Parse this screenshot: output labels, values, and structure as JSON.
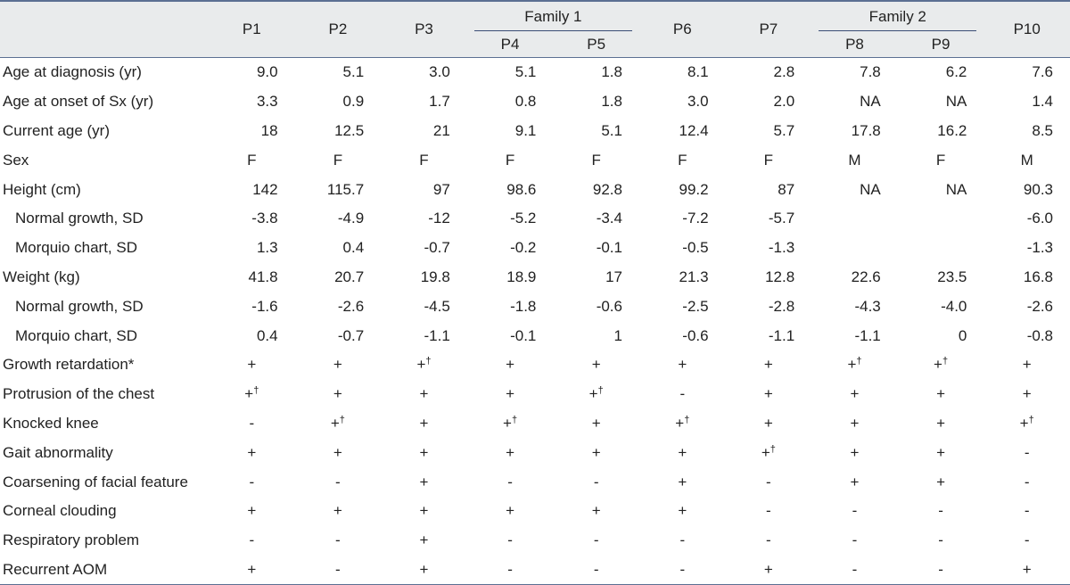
{
  "header": {
    "patients": [
      "P1",
      "P2",
      "P3",
      "P4",
      "P5",
      "P6",
      "P7",
      "P8",
      "P9",
      "P10"
    ],
    "family1": "Family 1",
    "family2": "Family 2"
  },
  "rows": [
    {
      "label": "Age at diagnosis (yr)",
      "indent": false,
      "align": "num",
      "cells": [
        "9.0",
        "5.1",
        "3.0",
        "5.1",
        "1.8",
        "8.1",
        "2.8",
        "7.8",
        "6.2",
        "7.6"
      ],
      "sups": [
        "",
        "",
        "",
        "",
        "",
        "",
        "",
        "",
        "",
        ""
      ]
    },
    {
      "label": "Age at onset of Sx (yr)",
      "indent": false,
      "align": "num",
      "cells": [
        "3.3",
        "0.9",
        "1.7",
        "0.8",
        "1.8",
        "3.0",
        "2.0",
        "NA",
        "NA",
        "1.4"
      ],
      "sups": [
        "",
        "",
        "",
        "",
        "",
        "",
        "",
        "",
        "",
        ""
      ]
    },
    {
      "label": "Current age (yr)",
      "indent": false,
      "align": "num",
      "cells": [
        "18",
        "12.5",
        "21",
        "9.1",
        "5.1",
        "12.4",
        "5.7",
        "17.8",
        "16.2",
        "8.5"
      ],
      "sups": [
        "",
        "",
        "",
        "",
        "",
        "",
        "",
        "",
        "",
        ""
      ]
    },
    {
      "label": "Sex",
      "indent": false,
      "align": "sym",
      "cells": [
        "F",
        "F",
        "F",
        "F",
        "F",
        "F",
        "F",
        "M",
        "F",
        "M"
      ],
      "sups": [
        "",
        "",
        "",
        "",
        "",
        "",
        "",
        "",
        "",
        ""
      ]
    },
    {
      "label": "Height (cm)",
      "indent": false,
      "align": "num",
      "cells": [
        "142",
        "115.7",
        "97",
        "98.6",
        "92.8",
        "99.2",
        "87",
        "NA",
        "NA",
        "90.3"
      ],
      "sups": [
        "",
        "",
        "",
        "",
        "",
        "",
        "",
        "",
        "",
        ""
      ]
    },
    {
      "label": "Normal growth, SD",
      "indent": true,
      "align": "num",
      "cells": [
        "-3.8",
        "-4.9",
        "-12",
        "-5.2",
        "-3.4",
        "-7.2",
        "-5.7",
        "",
        "",
        "-6.0"
      ],
      "sups": [
        "",
        "",
        "",
        "",
        "",
        "",
        "",
        "",
        "",
        ""
      ]
    },
    {
      "label": "Morquio chart, SD",
      "indent": true,
      "align": "num",
      "cells": [
        "1.3",
        "0.4",
        "-0.7",
        "-0.2",
        "-0.1",
        "-0.5",
        "-1.3",
        "",
        "",
        "-1.3"
      ],
      "sups": [
        "",
        "",
        "",
        "",
        "",
        "",
        "",
        "",
        "",
        ""
      ]
    },
    {
      "label": "Weight (kg)",
      "indent": false,
      "align": "num",
      "cells": [
        "41.8",
        "20.7",
        "19.8",
        "18.9",
        "17",
        "21.3",
        "12.8",
        "22.6",
        "23.5",
        "16.8"
      ],
      "sups": [
        "",
        "",
        "",
        "",
        "",
        "",
        "",
        "",
        "",
        ""
      ]
    },
    {
      "label": "Normal growth, SD",
      "indent": true,
      "align": "num",
      "cells": [
        "-1.6",
        "-2.6",
        "-4.5",
        "-1.8",
        "-0.6",
        "-2.5",
        "-2.8",
        "-4.3",
        "-4.0",
        "-2.6"
      ],
      "sups": [
        "",
        "",
        "",
        "",
        "",
        "",
        "",
        "",
        "",
        ""
      ]
    },
    {
      "label": "Morquio chart, SD",
      "indent": true,
      "align": "num",
      "cells": [
        "0.4",
        "-0.7",
        "-1.1",
        "-0.1",
        "1",
        "-0.6",
        "-1.1",
        "-1.1",
        "0",
        "-0.8"
      ],
      "sups": [
        "",
        "",
        "",
        "",
        "",
        "",
        "",
        "",
        "",
        ""
      ]
    },
    {
      "label": "Growth retardation*",
      "indent": false,
      "align": "sym",
      "cells": [
        "+",
        "+",
        "+",
        "+",
        "+",
        "+",
        "+",
        "+",
        "+",
        "+"
      ],
      "sups": [
        "",
        "",
        "†",
        "",
        "",
        "",
        "",
        "†",
        "†",
        ""
      ]
    },
    {
      "label": "Protrusion of the chest",
      "indent": false,
      "align": "sym",
      "cells": [
        "+",
        "+",
        "+",
        "+",
        "+",
        "-",
        "+",
        "+",
        "+",
        "+"
      ],
      "sups": [
        "†",
        "",
        "",
        "",
        "†",
        "",
        "",
        "",
        "",
        ""
      ]
    },
    {
      "label": "Knocked knee",
      "indent": false,
      "align": "sym",
      "cells": [
        "-",
        "+",
        "+",
        "+",
        "+",
        "+",
        "+",
        "+",
        "+",
        "+"
      ],
      "sups": [
        "",
        "†",
        "",
        "†",
        "",
        "†",
        "",
        "",
        "",
        "†"
      ]
    },
    {
      "label": "Gait abnormality",
      "indent": false,
      "align": "sym",
      "cells": [
        "+",
        "+",
        "+",
        "+",
        "+",
        "+",
        "+",
        "+",
        "+",
        "-"
      ],
      "sups": [
        "",
        "",
        "",
        "",
        "",
        "",
        "†",
        "",
        "",
        ""
      ]
    },
    {
      "label": "Coarsening of facial feature",
      "indent": false,
      "align": "sym",
      "cells": [
        "-",
        "-",
        "+",
        "-",
        "-",
        "+",
        "-",
        "+",
        "+",
        "-"
      ],
      "sups": [
        "",
        "",
        "",
        "",
        "",
        "",
        "",
        "",
        "",
        ""
      ]
    },
    {
      "label": "Corneal clouding",
      "indent": false,
      "align": "sym",
      "cells": [
        "+",
        "+",
        "+",
        "+",
        "+",
        "+",
        "-",
        "-",
        "-",
        "-"
      ],
      "sups": [
        "",
        "",
        "",
        "",
        "",
        "",
        "",
        "",
        "",
        ""
      ]
    },
    {
      "label": "Respiratory problem",
      "indent": false,
      "align": "sym",
      "cells": [
        "-",
        "-",
        "+",
        "-",
        "-",
        "-",
        "-",
        "-",
        "-",
        "-"
      ],
      "sups": [
        "",
        "",
        "",
        "",
        "",
        "",
        "",
        "",
        "",
        ""
      ]
    },
    {
      "label": "Recurrent AOM",
      "indent": false,
      "align": "sym",
      "cells": [
        "+",
        "-",
        "+",
        "-",
        "-",
        "-",
        "+",
        "-",
        "-",
        "+"
      ],
      "sups": [
        "",
        "",
        "",
        "",
        "",
        "",
        "",
        "",
        "",
        ""
      ]
    }
  ]
}
